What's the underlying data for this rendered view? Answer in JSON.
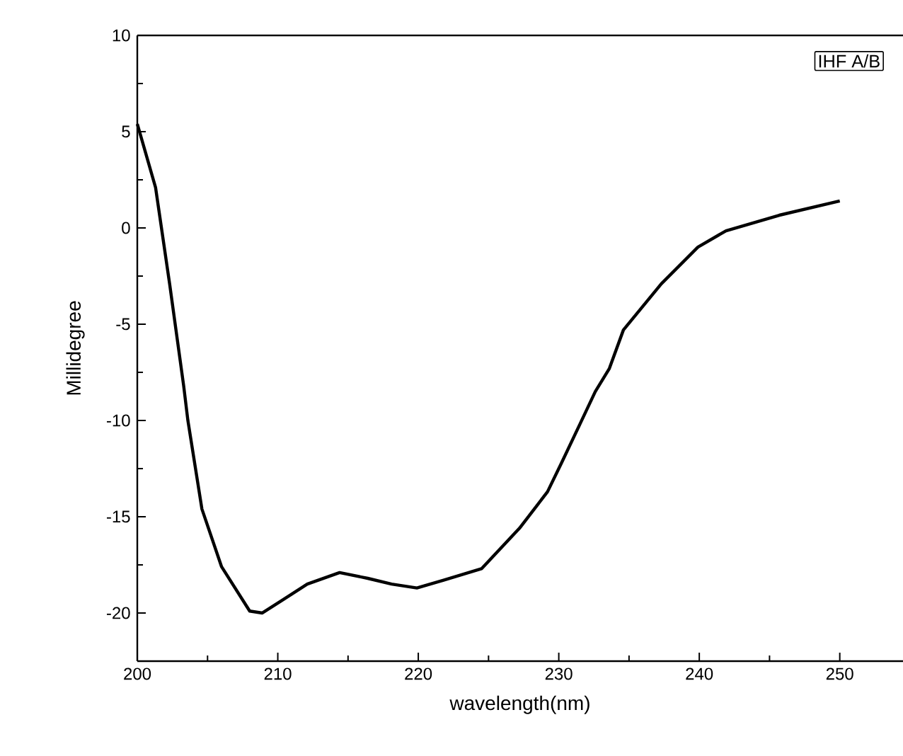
{
  "chart_data": {
    "type": "line",
    "xlabel": "wavelength(nm)",
    "ylabel": "Millidegree",
    "annotations": [
      "IHF A/B"
    ],
    "xlim": [
      200,
      254.5
    ],
    "ylim": [
      -22.5,
      10
    ],
    "xticks": [
      200,
      210,
      220,
      230,
      240,
      250
    ],
    "yticks": [
      -20,
      -15,
      -10,
      -5,
      0,
      5,
      10
    ],
    "marker": "none",
    "line_style": "solid",
    "series": [
      {
        "color": "#000000",
        "x": [
          200,
          201.3,
          202.3,
          203.3,
          203.6,
          204.6,
          206.0,
          208.0,
          208.9,
          210.4,
          212.1,
          214.4,
          216.4,
          218.1,
          219.9,
          221.8,
          224.5,
          227.2,
          229.2,
          230.2,
          231.5,
          232.6,
          233.6,
          234.6,
          237.3,
          239.9,
          241.9,
          245.7,
          250.0
        ],
        "values": [
          5.4,
          2.1,
          -2.9,
          -8.2,
          -10.0,
          -14.6,
          -17.6,
          -19.9,
          -20.0,
          -19.3,
          -18.5,
          -17.9,
          -18.2,
          -18.5,
          -18.7,
          -18.3,
          -17.7,
          -15.6,
          -13.7,
          -12.2,
          -10.2,
          -8.5,
          -7.3,
          -5.3,
          -2.9,
          -1.0,
          -0.15,
          0.66,
          1.4
        ]
      }
    ]
  }
}
